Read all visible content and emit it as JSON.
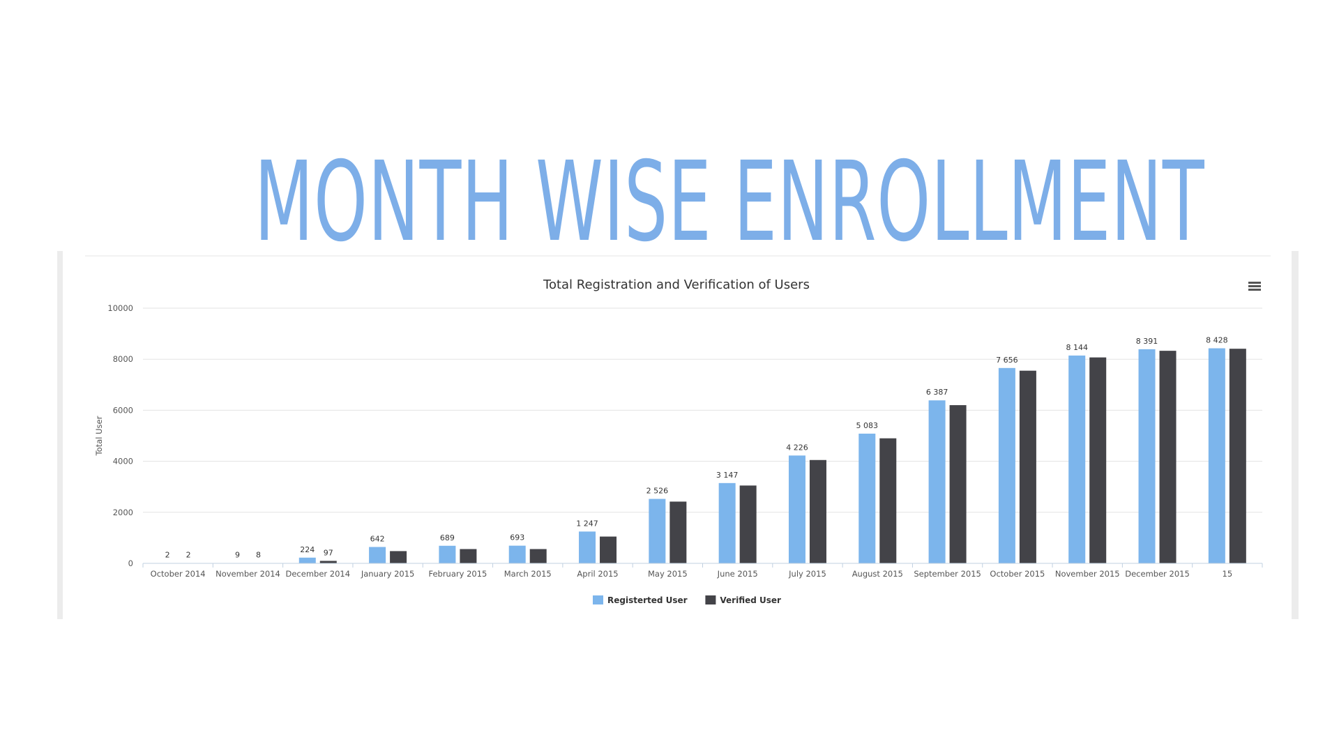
{
  "slide": {
    "title": "MONTH WISE ENROLLMENT"
  },
  "chart_data": {
    "type": "bar",
    "title": "Total Registration and Verification of Users",
    "xlabel": "",
    "ylabel": "Total User",
    "ylim": [
      0,
      10000
    ],
    "yticks": [
      0,
      2000,
      4000,
      6000,
      8000,
      10000
    ],
    "grid": true,
    "legend_position": "bottom-center",
    "categories": [
      "October 2014",
      "November 2014",
      "December 2014",
      "January 2015",
      "February 2015",
      "March 2015",
      "April 2015",
      "May 2015",
      "June 2015",
      "July 2015",
      "August 2015",
      "September 2015",
      "October 2015",
      "November 2015",
      "December 2015",
      "15"
    ],
    "series": [
      {
        "name": "Registerted User",
        "color": "#7cb5ec",
        "values": [
          2,
          9,
          224,
          642,
          689,
          693,
          1247,
          2526,
          3147,
          4226,
          5083,
          6387,
          7656,
          8144,
          8391,
          8428
        ],
        "labels": [
          "2",
          "9",
          "224",
          "642",
          "689",
          "693",
          "1 247",
          "2 526",
          "3 147",
          "4 226",
          "5 083",
          "6 387",
          "7 656",
          "8 144",
          "8 391",
          "8 428"
        ]
      },
      {
        "name": "Verified User",
        "color": "#434348",
        "values": [
          2,
          8,
          97,
          480,
          560,
          560,
          1050,
          2420,
          3050,
          4050,
          4900,
          6200,
          7550,
          8070,
          8330,
          8410
        ],
        "labels": [
          "2",
          "8",
          "97",
          "",
          "",
          "",
          "",
          "",
          "",
          "",
          "",
          "",
          "",
          "",
          "",
          ""
        ]
      }
    ]
  }
}
